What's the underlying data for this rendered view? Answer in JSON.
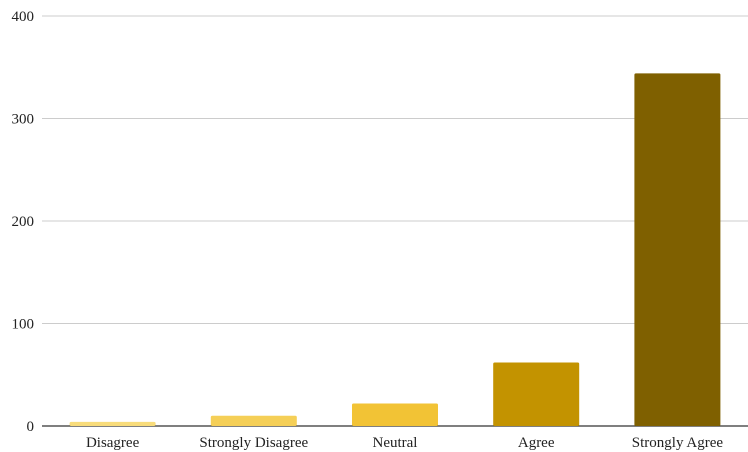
{
  "chart_data": {
    "type": "bar",
    "title": "",
    "xlabel": "",
    "ylabel": "",
    "categories": [
      "Disagree",
      "Strongly Disagree",
      "Neutral",
      "Agree",
      "Strongly Agree"
    ],
    "values": [
      4,
      10,
      22,
      62,
      344
    ],
    "colors": [
      "#f8dc7b",
      "#f5cf57",
      "#f2c335",
      "#c39300",
      "#7f6000"
    ],
    "ylim": [
      0,
      400
    ],
    "yticks": [
      0,
      100,
      200,
      300,
      400
    ],
    "grid": true,
    "legend": "none",
    "grid_color": "#cccccc",
    "axis_color": "#333333"
  }
}
